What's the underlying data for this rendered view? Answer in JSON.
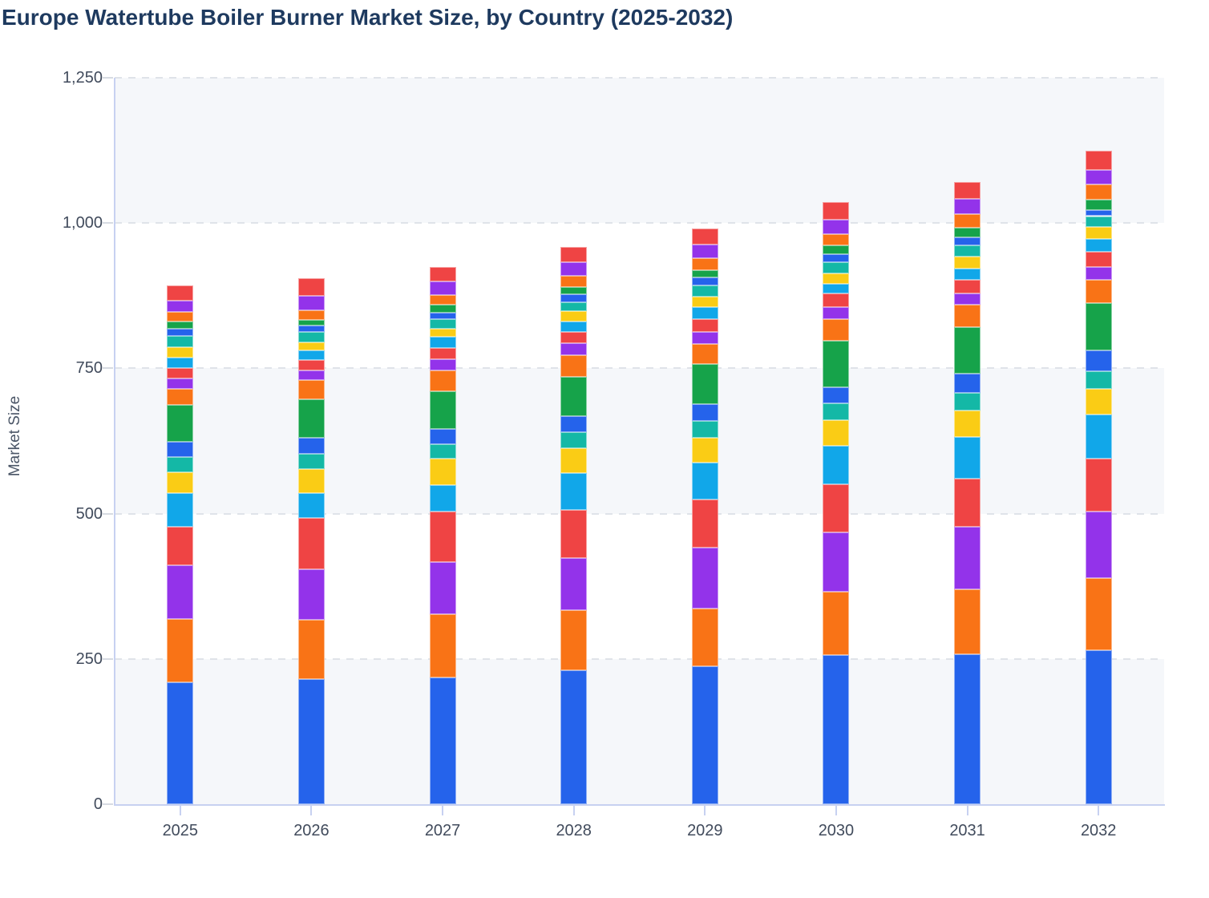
{
  "title": "Europe Watertube Boiler Burner Market Size, by Country (2025-2032)",
  "chart_data": {
    "type": "bar",
    "stacked": true,
    "title": "Europe Watertube Boiler Burner Market Size, by Country (2025-2032)",
    "xlabel": "",
    "ylabel": "Market Size",
    "ylim": [
      0,
      1250
    ],
    "ytick_values": [
      0,
      250,
      500,
      750,
      1000,
      1250
    ],
    "ytick_labels": [
      "0",
      "250",
      "500",
      "750",
      "1,000",
      "1,250"
    ],
    "categories": [
      "2025",
      "2026",
      "2027",
      "2028",
      "2029",
      "2030",
      "2031",
      "2032"
    ],
    "grid": "horizontal-dashed",
    "background_bands": [
      [
        0,
        250
      ],
      [
        500,
        750
      ],
      [
        1000,
        1250
      ]
    ],
    "legend": "none-visible",
    "series": [
      {
        "name": "series-01",
        "color": "#2563eb",
        "values": [
          210,
          215,
          218,
          231,
          237,
          256,
          258,
          265
        ]
      },
      {
        "name": "series-02",
        "color": "#f97316",
        "values": [
          109,
          102,
          109,
          103,
          100,
          110,
          112,
          124
        ]
      },
      {
        "name": "series-03",
        "color": "#9333ea",
        "values": [
          92,
          87,
          89,
          90,
          104,
          102,
          108,
          115
        ]
      },
      {
        "name": "series-04",
        "color": "#ef4444",
        "values": [
          66,
          89,
          88,
          83,
          83,
          83,
          82,
          91
        ]
      },
      {
        "name": "series-05",
        "color": "#11a7e9",
        "values": [
          58,
          42,
          45,
          63,
          64,
          66,
          72,
          75
        ]
      },
      {
        "name": "series-06",
        "color": "#facc15",
        "values": [
          36,
          42,
          45,
          42,
          43,
          44,
          45,
          45
        ]
      },
      {
        "name": "series-07",
        "color": "#14b8a6",
        "values": [
          27,
          26,
          26,
          28,
          29,
          29,
          31,
          30
        ]
      },
      {
        "name": "series-08",
        "color": "#2563eb",
        "values": [
          26,
          28,
          26,
          28,
          29,
          28,
          33,
          36
        ]
      },
      {
        "name": "series-09",
        "color": "#16a34a",
        "values": [
          63,
          66,
          64,
          68,
          69,
          79,
          80,
          81
        ]
      },
      {
        "name": "series-10",
        "color": "#f97316",
        "values": [
          28,
          33,
          36,
          36,
          34,
          38,
          38,
          40
        ]
      },
      {
        "name": "series-11",
        "color": "#9333ea",
        "values": [
          18,
          17,
          20,
          21,
          20,
          21,
          20,
          23
        ]
      },
      {
        "name": "series-12",
        "color": "#ef4444",
        "values": [
          18,
          17,
          19,
          19,
          23,
          23,
          23,
          25
        ]
      },
      {
        "name": "series-13",
        "color": "#11a7e9",
        "values": [
          17,
          17,
          19,
          19,
          20,
          17,
          20,
          23
        ]
      },
      {
        "name": "series-14",
        "color": "#facc15",
        "values": [
          18,
          14,
          14,
          17,
          18,
          17,
          20,
          20
        ]
      },
      {
        "name": "series-15",
        "color": "#14b8a6",
        "values": [
          20,
          17,
          17,
          15,
          20,
          20,
          20,
          19
        ]
      },
      {
        "name": "series-16",
        "color": "#2563eb",
        "values": [
          12,
          11,
          11,
          14,
          13,
          13,
          13,
          11
        ]
      },
      {
        "name": "series-17",
        "color": "#16a34a",
        "values": [
          12,
          10,
          13,
          13,
          13,
          15,
          17,
          17
        ]
      },
      {
        "name": "series-18",
        "color": "#f97316",
        "values": [
          17,
          17,
          17,
          19,
          20,
          20,
          23,
          26
        ]
      },
      {
        "name": "series-19",
        "color": "#9333ea",
        "values": [
          20,
          25,
          23,
          23,
          24,
          25,
          26,
          25
        ]
      },
      {
        "name": "series-20",
        "color": "#ef4444",
        "values": [
          25,
          30,
          26,
          27,
          28,
          30,
          30,
          34
        ]
      }
    ],
    "totals": [
      892,
      905,
      925,
      959,
      991,
      1036,
      1071,
      1125
    ],
    "colors": {
      "title_text": "#1e3a5f",
      "axis_text": "#414b5c",
      "axis_line": "#c7d1f1",
      "gridline": "#dfe3e9",
      "band_fill": "#f5f7fa"
    }
  }
}
